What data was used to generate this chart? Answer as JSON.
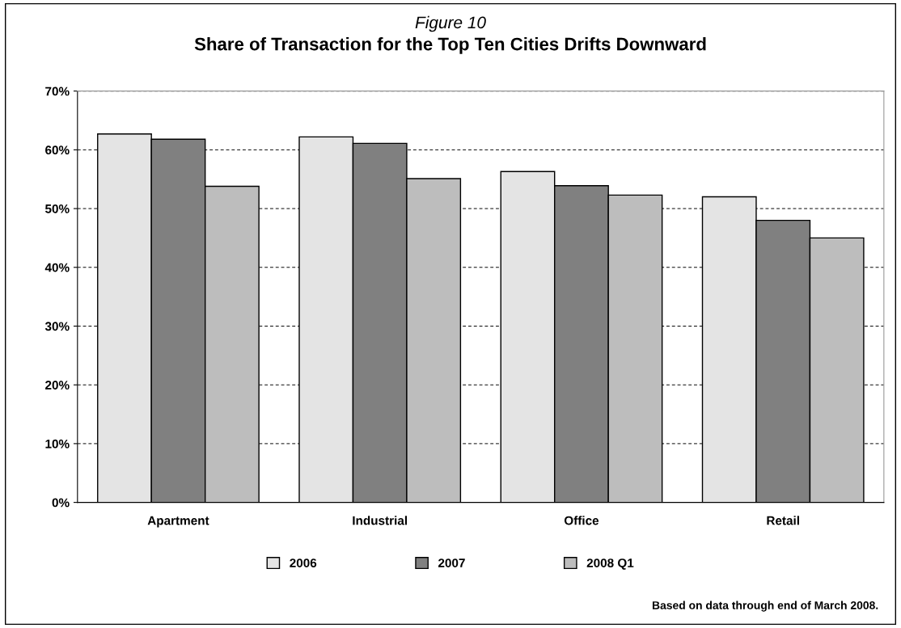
{
  "chart_data": {
    "type": "bar",
    "title": "Figure 10",
    "subtitle": "Share of Transaction for the Top Ten Cities Drifts Downward",
    "categories": [
      "Apartment",
      "Industrial",
      "Office",
      "Retail"
    ],
    "series": [
      {
        "name": "2006",
        "color": "#e4e4e4",
        "values": [
          62.7,
          62.2,
          56.3,
          52.0
        ]
      },
      {
        "name": "2007",
        "color": "#808080",
        "values": [
          61.8,
          61.1,
          53.9,
          48.0
        ]
      },
      {
        "name": "2008 Q1",
        "color": "#bdbdbd",
        "values": [
          53.8,
          55.1,
          52.3,
          45.0
        ]
      }
    ],
    "ylim": [
      0,
      70
    ],
    "yticks": [
      {
        "value": 0,
        "label": "0%"
      },
      {
        "value": 10,
        "label": "10%"
      },
      {
        "value": 20,
        "label": "20%"
      },
      {
        "value": 30,
        "label": "30%"
      },
      {
        "value": 40,
        "label": "40%"
      },
      {
        "value": 50,
        "label": "50%"
      },
      {
        "value": 60,
        "label": "60%"
      },
      {
        "value": 70,
        "label": "70%"
      }
    ],
    "grid": "y",
    "legend": "bottom",
    "annotations": [
      "Based on data through end of March 2008."
    ]
  }
}
